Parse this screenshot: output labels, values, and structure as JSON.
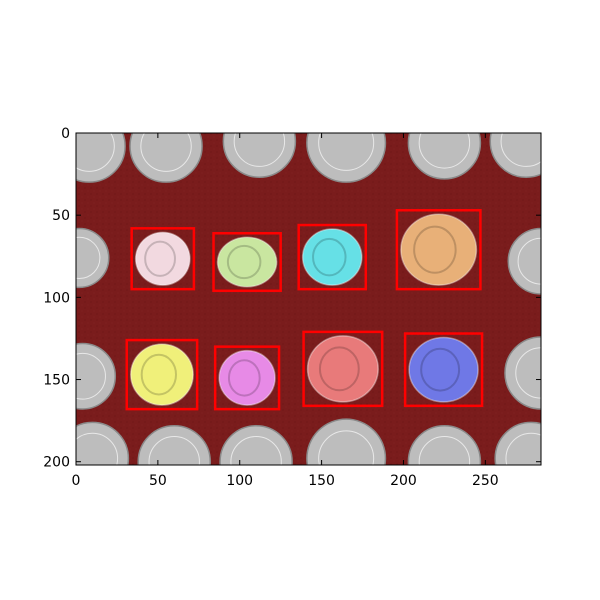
{
  "chart_data": {
    "type": "image",
    "title": "",
    "xlabel": "",
    "ylabel": "",
    "xlim": [
      0,
      284
    ],
    "ylim": [
      202,
      0
    ],
    "grid": false,
    "legend": "none",
    "x_ticks": [
      0,
      50,
      100,
      150,
      200,
      250
    ],
    "y_ticks": [
      0,
      50,
      100,
      150,
      200
    ],
    "x_tick_labels": [
      "0",
      "50",
      "100",
      "150",
      "200",
      "250"
    ],
    "y_tick_labels": [
      "0",
      "50",
      "100",
      "150",
      "200"
    ],
    "background_color": "#7a1c1c",
    "box_color": "#ff0000",
    "coins": [
      {
        "x": [
          34,
          72
        ],
        "y": [
          58,
          95
        ],
        "color": "#f2d9e0"
      },
      {
        "x": [
          84,
          125
        ],
        "y": [
          61,
          96
        ],
        "color": "#c9e6a0"
      },
      {
        "x": [
          136,
          177
        ],
        "y": [
          56,
          95
        ],
        "color": "#66e0e6"
      },
      {
        "x": [
          196,
          247
        ],
        "y": [
          47,
          95
        ],
        "color": "#e8b078"
      },
      {
        "x": [
          31,
          74
        ],
        "y": [
          126,
          168
        ],
        "color": "#f0f07a"
      },
      {
        "x": [
          85,
          124
        ],
        "y": [
          130,
          168
        ],
        "color": "#e78ae6"
      },
      {
        "x": [
          139,
          187
        ],
        "y": [
          121,
          166
        ],
        "color": "#e87a7a"
      },
      {
        "x": [
          201,
          248
        ],
        "y": [
          122,
          166
        ],
        "color": "#6f78e6"
      }
    ]
  }
}
